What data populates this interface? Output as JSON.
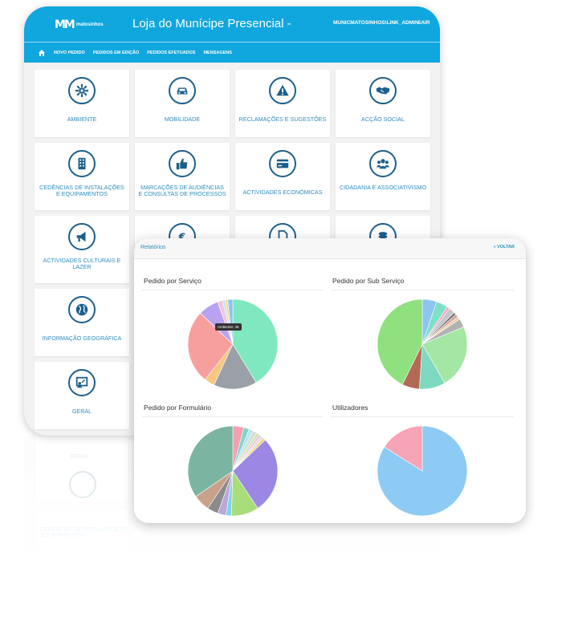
{
  "header": {
    "logo_mark": "MM",
    "logo_text": "matosinhos",
    "title": "Loja do Munícipe Presencial -",
    "user": "MUNICMATOSINHOS\\LINK_ADMIN",
    "logout": "SAIR"
  },
  "nav": {
    "home_icon": "home-icon",
    "items": [
      "NOVO PEDIDO",
      "PEDIDOS EM EDIÇÃO",
      "PEDIDOS EFETUADOS",
      "MENSAGENS"
    ]
  },
  "tiles": [
    {
      "label": "AMBIENTE",
      "icon": "gear-icon"
    },
    {
      "label": "MOBILIDADE",
      "icon": "car-icon"
    },
    {
      "label": "RECLAMAÇÕES E SUGESTÕES",
      "icon": "warning-icon"
    },
    {
      "label": "ACÇÃO SOCIAL",
      "icon": "handshake-icon"
    },
    {
      "label": "CEDÊNCIAS DE INSTALAÇÕES E EQUIPAMENTOS",
      "icon": "building-icon"
    },
    {
      "label": "MARCAÇÕES DE AUDIÊNCIAS E CONSULTAS DE PROCESSOS",
      "icon": "thumbs-up-icon"
    },
    {
      "label": "ACTIVIDADES ECONÓMICAS",
      "icon": "credit-card-icon"
    },
    {
      "label": "CIDADANIA E ASSOCIATIVISMO",
      "icon": "users-icon"
    },
    {
      "label": "ACTIVIDADES CULTURAIS E LAZER",
      "icon": "megaphone-icon"
    },
    {
      "label": "",
      "icon": "euro-icon"
    },
    {
      "label": "",
      "icon": "document-icon"
    },
    {
      "label": "",
      "icon": "coins-icon"
    },
    {
      "label": "INFORMAÇÃO GEOGRÁFICA",
      "icon": "globe-icon"
    },
    {
      "label": "GERAL",
      "icon": "presentation-icon"
    }
  ],
  "reports": {
    "title": "Relatórios",
    "back": "« VOLTAR",
    "tooltip": "Ambiente: 45",
    "panels": [
      {
        "title": "Pedido por Serviço"
      },
      {
        "title": "Pedido por Sub Serviço"
      },
      {
        "title": "Pedido por Formulário"
      },
      {
        "title": "Utilizadores"
      }
    ]
  },
  "chart_data": [
    {
      "type": "pie",
      "title": "Pedido por Serviço",
      "categories": [
        "Ambiente",
        "",
        "",
        "",
        "",
        "",
        "",
        "",
        ""
      ],
      "values": [
        45,
        17,
        4,
        29,
        8,
        2,
        1,
        1,
        2
      ],
      "colors": [
        "#7fe8be",
        "#9aa0a8",
        "#f8c77e",
        "#f79f9f",
        "#b8a3f1",
        "#f2c6dc",
        "#b7e7f0",
        "#f7d78e",
        "#89c5f0"
      ]
    },
    {
      "type": "pie",
      "title": "Pedido por Sub Serviço",
      "categories": [
        "",
        "",
        "",
        "",
        "",
        "",
        "",
        "",
        "",
        "",
        "",
        ""
      ],
      "values": [
        5,
        4,
        1,
        2,
        1,
        1,
        1,
        3,
        22,
        9,
        6,
        41
      ],
      "colors": [
        "#8cc6f0",
        "#7fe0c5",
        "#f3a7c9",
        "#c6c6c6",
        "#7d7d7d",
        "#d69e9e",
        "#e7d1a3",
        "#b2b2b2",
        "#a4e6a4",
        "#7fd9c0",
        "#b26a56",
        "#8fe07e"
      ]
    },
    {
      "type": "pie",
      "title": "Pedido por Formulário",
      "categories": [
        "",
        "",
        "",
        "",
        "",
        "",
        "",
        "",
        "",
        "",
        "",
        "",
        "",
        "",
        ""
      ],
      "values": [
        4,
        2,
        1.5,
        1.5,
        1,
        1,
        1,
        1,
        28,
        10,
        2,
        3,
        4,
        6,
        35
      ],
      "colors": [
        "#f4a0b0",
        "#7fd6c9",
        "#b7e4f0",
        "#d9d9d9",
        "#c3e8a2",
        "#f2c2e0",
        "#e0e0e0",
        "#f3d07c",
        "#9b88e4",
        "#a9dd7b",
        "#7fd4e8",
        "#b9a8d8",
        "#8b8b8b",
        "#c9a089",
        "#7bb5a1"
      ]
    },
    {
      "type": "pie",
      "title": "Utilizadores",
      "categories": [
        "",
        ""
      ],
      "values": [
        84,
        16
      ],
      "colors": [
        "#8dcaf4",
        "#f7a4b6"
      ]
    }
  ]
}
